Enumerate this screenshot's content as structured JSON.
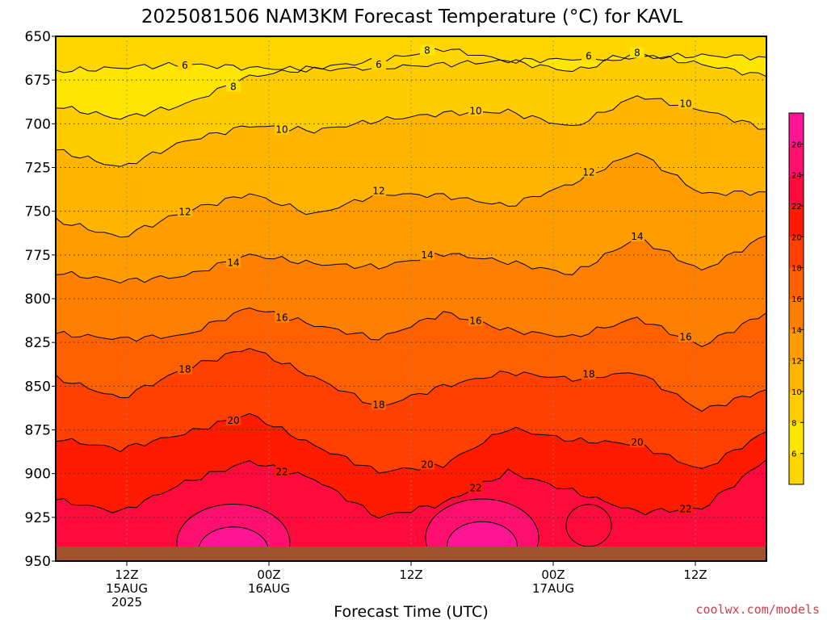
{
  "chart_data": {
    "type": "contour",
    "title": "2025081506 NAM3KM Forecast Temperature (°C) for KAVL",
    "xlabel": "Forecast Time (UTC)",
    "ylabel": "",
    "y_levels": [
      650,
      675,
      700,
      725,
      750,
      775,
      800,
      825,
      850,
      875,
      900,
      925,
      950
    ],
    "y_tick_labels": [
      "650",
      "675",
      "700",
      "725",
      "750",
      "775",
      "800",
      "825",
      "850",
      "875",
      "900",
      "925",
      "950"
    ],
    "ylim": [
      650,
      950
    ],
    "y_inverted": true,
    "xlim": [
      "2025-08-15 06Z",
      "2025-08-17 18Z"
    ],
    "x_ticks": [
      {
        "time": "2025-08-15 12Z",
        "lines": [
          "12Z",
          "15AUG",
          "2025"
        ]
      },
      {
        "time": "2025-08-16 00Z",
        "lines": [
          "00Z",
          "16AUG"
        ]
      },
      {
        "time": "2025-08-16 12Z",
        "lines": [
          "12Z"
        ]
      },
      {
        "time": "2025-08-17 00Z",
        "lines": [
          "00Z",
          "17AUG"
        ]
      },
      {
        "time": "2025-08-17 12Z",
        "lines": [
          "12Z"
        ]
      }
    ],
    "contour_interval": 2,
    "contours": [
      {
        "value": 6,
        "label": "6",
        "pressures": [
          670,
          668,
          666,
          668,
          669,
          668,
          666,
          664,
          663,
          662,
          661,
          662
        ]
      },
      {
        "value": 8,
        "label": "8",
        "pressures": [
          690,
          697,
          689,
          673,
          668,
          664,
          657,
          664,
          670,
          660,
          666,
          673
        ]
      },
      {
        "value": 10,
        "label": "10",
        "pressures": [
          715,
          725,
          710,
          701,
          704,
          698,
          694,
          693,
          702,
          684,
          692,
          703
        ]
      },
      {
        "value": 12,
        "label": "12",
        "pressures": [
          755,
          765,
          750,
          740,
          752,
          740,
          741,
          747,
          734,
          716,
          740,
          739
        ]
      },
      {
        "value": 14,
        "label": "14",
        "pressures": [
          785,
          790,
          787,
          775,
          780,
          782,
          774,
          779,
          786,
          765,
          784,
          764
        ]
      },
      {
        "value": 16,
        "label": "16",
        "pressures": [
          820,
          823,
          821,
          805,
          815,
          823,
          808,
          818,
          822,
          811,
          827,
          808
        ]
      },
      {
        "value": 18,
        "label": "18",
        "pressures": [
          845,
          857,
          840,
          828,
          845,
          862,
          850,
          842,
          846,
          842,
          864,
          852
        ]
      },
      {
        "value": 20,
        "label": "20",
        "pressures": [
          880,
          886,
          877,
          866,
          884,
          899,
          895,
          874,
          881,
          883,
          898,
          876
        ]
      },
      {
        "value": 22,
        "label": "22",
        "pressures": [
          915,
          922,
          905,
          893,
          903,
          925,
          917,
          899,
          910,
          922,
          920,
          892
        ]
      }
    ],
    "warm_cores": [
      {
        "value": 24,
        "center_time": "2025-08-15 21Z",
        "center_pressure": 935
      },
      {
        "value": 24,
        "center_time": "2025-08-16 18Z",
        "center_pressure": 932
      },
      {
        "value": 22,
        "center_time": "2025-08-17 03Z",
        "center_pressure": 925
      }
    ],
    "colorbar": {
      "ticks": [
        "6",
        "8",
        "10",
        "12",
        "14",
        "16",
        "18",
        "20",
        "22",
        "24",
        "26"
      ],
      "colors": [
        "#ffe600",
        "#ffcc00",
        "#ffb400",
        "#ff9c00",
        "#ff7f00",
        "#ff6000",
        "#ff4000",
        "#ff1a00",
        "#ff0a3c",
        "#ff0f6e",
        "#ff1493"
      ]
    },
    "ground_color": "#a0522d",
    "grid": true
  },
  "credit": "coolwx.com/models"
}
